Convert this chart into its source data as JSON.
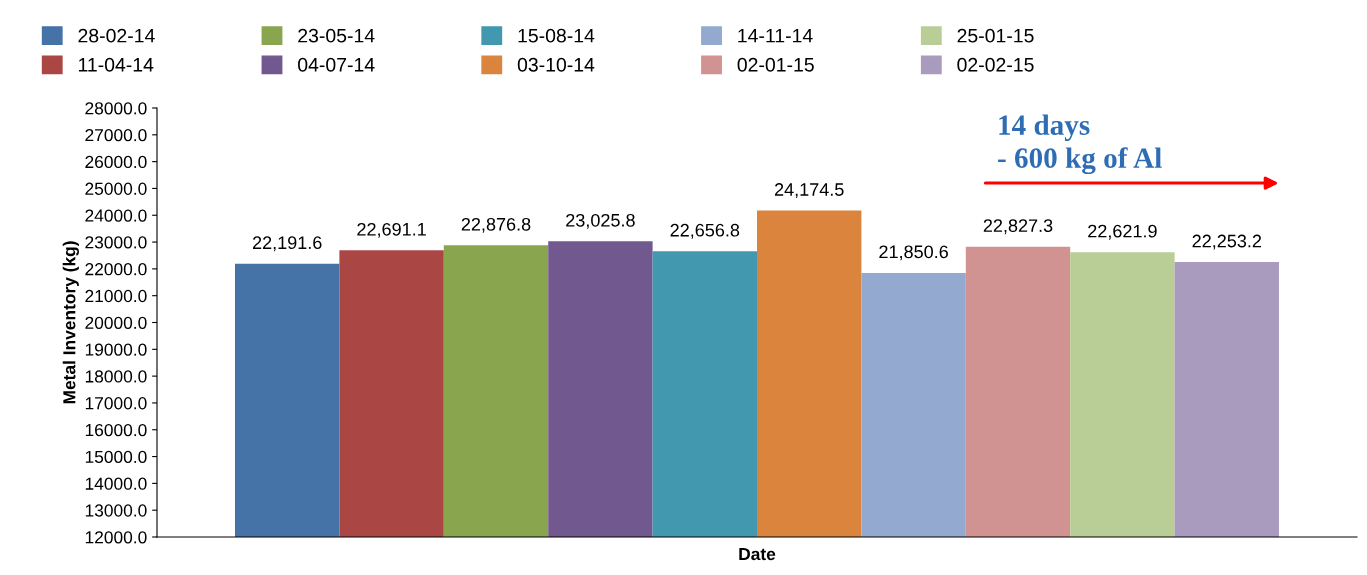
{
  "chart_data": {
    "type": "bar",
    "ylabel": "Metal Inventory (kg)",
    "xlabel": "Date",
    "categories": [
      null
    ],
    "series": [
      {
        "name": "28-02-14",
        "color": "#4572a7",
        "values": [
          22191.6
        ],
        "value_labels": [
          "22,191.6"
        ]
      },
      {
        "name": "11-04-14",
        "color": "#aa4643",
        "values": [
          22691.1
        ],
        "value_labels": [
          "22,691.1"
        ]
      },
      {
        "name": "23-05-14",
        "color": "#89a54e",
        "values": [
          22876.8
        ],
        "value_labels": [
          "22,876.8"
        ]
      },
      {
        "name": "04-07-14",
        "color": "#71588f",
        "values": [
          23025.8
        ],
        "value_labels": [
          "23,025.8"
        ]
      },
      {
        "name": "15-08-14",
        "color": "#4198af",
        "values": [
          22656.8
        ],
        "value_labels": [
          "22,656.8"
        ]
      },
      {
        "name": "03-10-14",
        "color": "#db843d",
        "values": [
          24174.5
        ],
        "value_labels": [
          "24,174.5"
        ]
      },
      {
        "name": "14-11-14",
        "color": "#93a9cf",
        "values": [
          21850.6
        ],
        "value_labels": [
          "21,850.6"
        ]
      },
      {
        "name": "02-01-15",
        "color": "#d19392",
        "values": [
          22827.3
        ],
        "value_labels": [
          "22,827.3"
        ]
      },
      {
        "name": "25-01-15",
        "color": "#b9cd96",
        "values": [
          22621.9
        ],
        "value_labels": [
          "22,621.9"
        ]
      },
      {
        "name": "02-02-15",
        "color": "#a99bbd",
        "values": [
          22253.2
        ],
        "value_labels": [
          "22,253.2"
        ]
      }
    ],
    "ylim": [
      12000,
      28000
    ],
    "yticks": [
      {
        "value": 12000,
        "label": "12000.0"
      },
      {
        "value": 13000,
        "label": "13000.0"
      },
      {
        "value": 14000,
        "label": "14000.0"
      },
      {
        "value": 15000,
        "label": "15000.0"
      },
      {
        "value": 16000,
        "label": "16000.0"
      },
      {
        "value": 17000,
        "label": "17000.0"
      },
      {
        "value": 18000,
        "label": "18000.0"
      },
      {
        "value": 19000,
        "label": "19000.0"
      },
      {
        "value": 20000,
        "label": "20000.0"
      },
      {
        "value": 21000,
        "label": "21000.0"
      },
      {
        "value": 22000,
        "label": "22000.0"
      },
      {
        "value": 23000,
        "label": "23000.0"
      },
      {
        "value": 24000,
        "label": "24000.0"
      },
      {
        "value": 25000,
        "label": "25000.0"
      },
      {
        "value": 26000,
        "label": "26000.0"
      },
      {
        "value": 27000,
        "label": "27000.0"
      },
      {
        "value": 28000,
        "label": "28000.0"
      }
    ],
    "grid": false,
    "legend": "top",
    "annotations": [
      "14 days\n- 600 kg of Al"
    ]
  }
}
